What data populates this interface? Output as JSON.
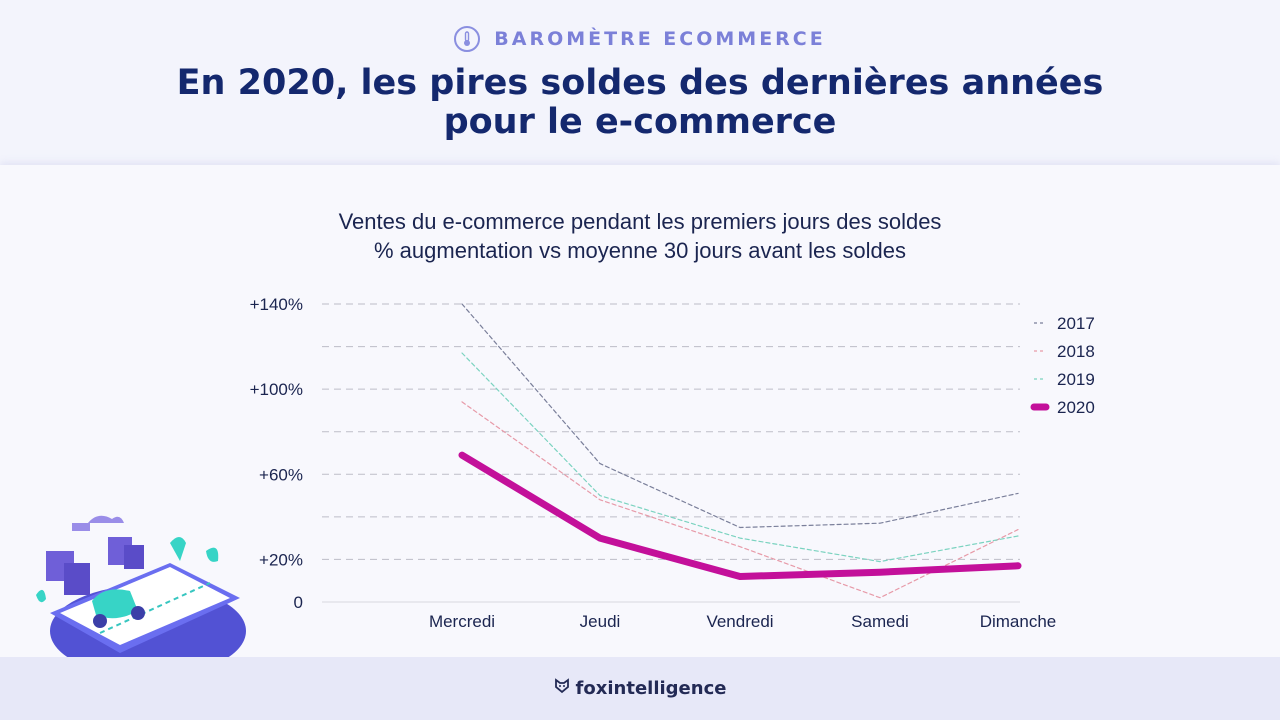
{
  "header": {
    "kicker": "BAROMÈTRE ECOMMERCE",
    "title_line1": "En 2020, les pires soldes des dernières années",
    "title_line2": "pour le e-commerce"
  },
  "footer": {
    "brand": "foxintelligence"
  },
  "chart_data": {
    "type": "line",
    "title": "Ventes du e-commerce pendant les premiers jours des soldes",
    "subtitle": "% augmentation vs moyenne 30 jours avant les soldes",
    "categories": [
      "Mercredi",
      "Jeudi",
      "Vendredi",
      "Samedi",
      "Dimanche"
    ],
    "ylim": [
      0,
      140
    ],
    "y_ticks": [
      0,
      20,
      60,
      100,
      140
    ],
    "y_tick_labels": [
      "0",
      "+20%",
      "+60%",
      "+100%",
      "+140%"
    ],
    "grid_lines": [
      20,
      40,
      60,
      80,
      100,
      120,
      140
    ],
    "grid": true,
    "legend_position": "right",
    "series": [
      {
        "name": "2017",
        "values": [
          140,
          65,
          35,
          37,
          51
        ],
        "color": "#7a7f9a",
        "style": "dashed"
      },
      {
        "name": "2018",
        "values": [
          94,
          48,
          26,
          2,
          34
        ],
        "color": "#e79aa8",
        "style": "dashed"
      },
      {
        "name": "2019",
        "values": [
          117,
          50,
          30,
          19,
          31
        ],
        "color": "#7bd3c0",
        "style": "dashed"
      },
      {
        "name": "2020",
        "values": [
          69,
          30,
          12,
          14,
          17
        ],
        "color": "#c3109a",
        "style": "solid"
      }
    ]
  }
}
